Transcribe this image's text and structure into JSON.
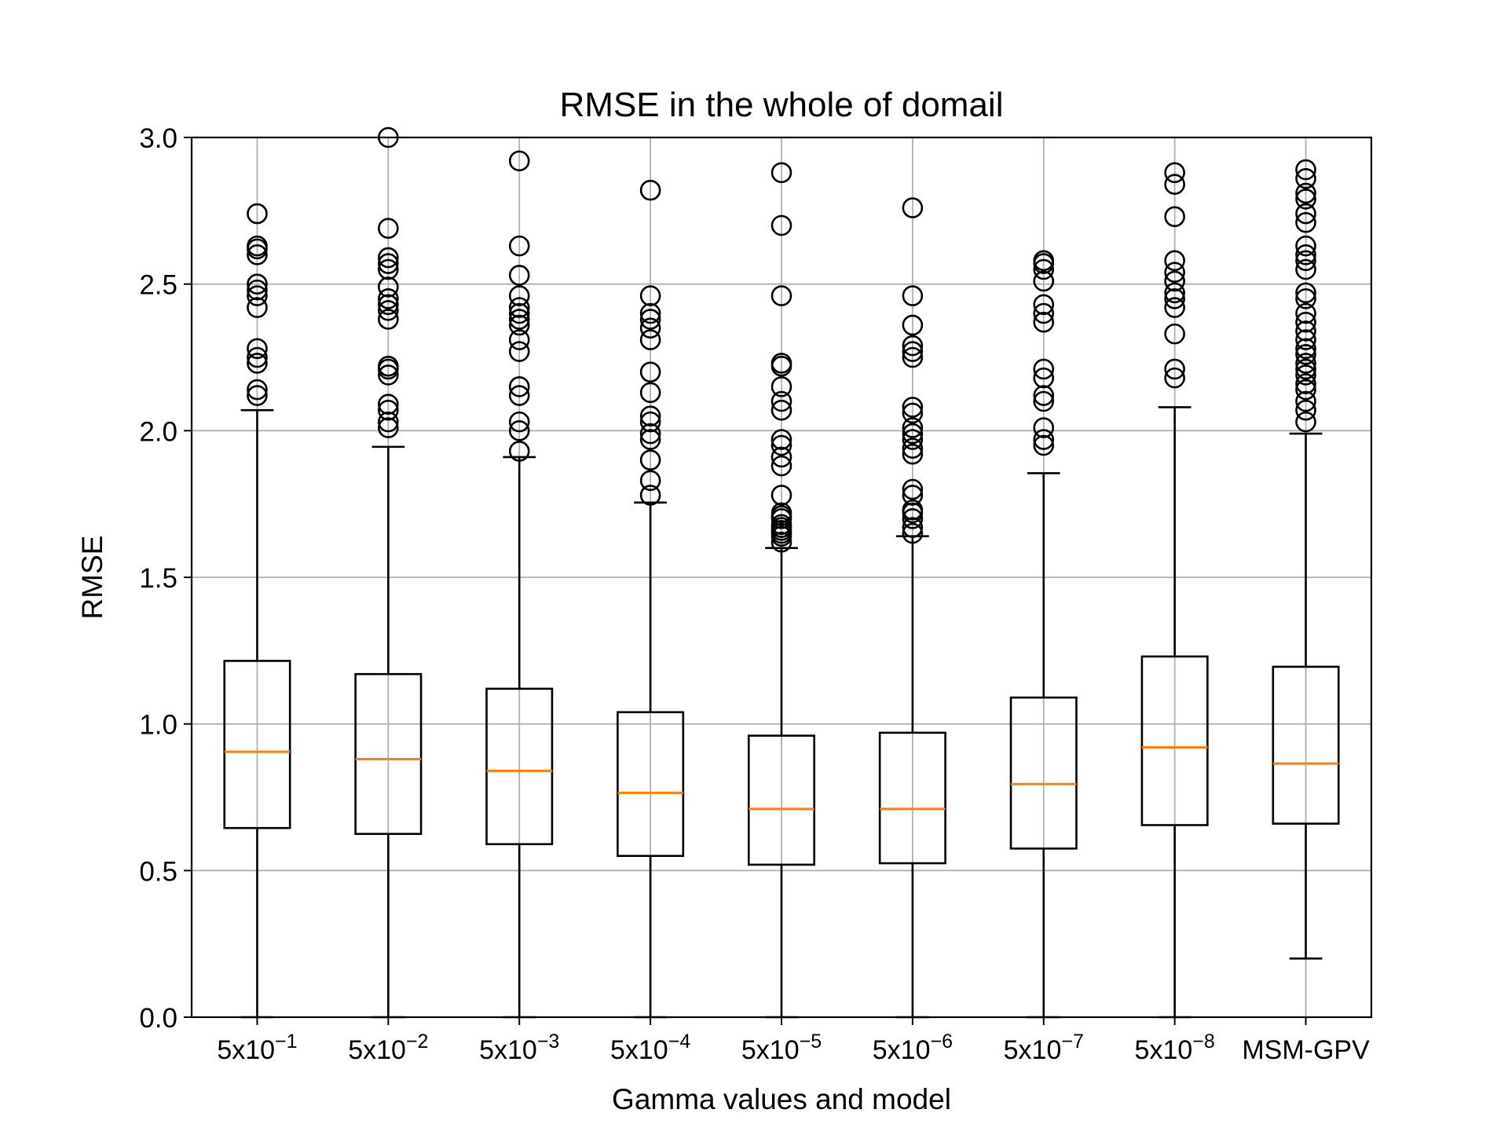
{
  "chart_data": {
    "type": "box",
    "title": "RMSE in the whole of domail",
    "xlabel": "Gamma values and model",
    "ylabel": "RMSE",
    "ylim": [
      0.0,
      3.0
    ],
    "yticks": [
      0.0,
      0.5,
      1.0,
      1.5,
      2.0,
      2.5,
      3.0
    ],
    "ytick_labels": [
      "0.0",
      "0.5",
      "1.0",
      "1.5",
      "2.0",
      "2.5",
      "3.0"
    ],
    "grid": true,
    "colors": {
      "box": "#000000",
      "median": "#ff7f0e",
      "grid": "#b0b0b0"
    },
    "categories": [
      {
        "base": "5x10",
        "exp": "−1"
      },
      {
        "base": "5x10",
        "exp": "−2"
      },
      {
        "base": "5x10",
        "exp": "−3"
      },
      {
        "base": "5x10",
        "exp": "−4"
      },
      {
        "base": "5x10",
        "exp": "−5"
      },
      {
        "base": "5x10",
        "exp": "−6"
      },
      {
        "base": "5x10",
        "exp": "−7"
      },
      {
        "base": "5x10",
        "exp": "−8"
      },
      {
        "base": "MSM-GPV",
        "exp": ""
      }
    ],
    "boxes": [
      {
        "whislo": 0.0,
        "q1": 0.645,
        "med": 0.905,
        "q3": 1.215,
        "whishi": 2.07,
        "fliers": [
          2.12,
          2.14,
          2.23,
          2.25,
          2.28,
          2.42,
          2.46,
          2.48,
          2.5,
          2.6,
          2.62,
          2.63,
          2.74
        ]
      },
      {
        "whislo": 0.0,
        "q1": 0.625,
        "med": 0.88,
        "q3": 1.17,
        "whishi": 1.945,
        "fliers": [
          2.01,
          2.03,
          2.07,
          2.09,
          2.19,
          2.21,
          2.22,
          2.38,
          2.41,
          2.43,
          2.45,
          2.49,
          2.55,
          2.57,
          2.59,
          2.69,
          3.0
        ]
      },
      {
        "whislo": 0.0,
        "q1": 0.59,
        "med": 0.84,
        "q3": 1.12,
        "whishi": 1.91,
        "fliers": [
          1.93,
          2.0,
          2.03,
          2.12,
          2.15,
          2.27,
          2.31,
          2.36,
          2.38,
          2.4,
          2.42,
          2.46,
          2.53,
          2.63,
          2.92
        ]
      },
      {
        "whislo": 0.0,
        "q1": 0.55,
        "med": 0.765,
        "q3": 1.04,
        "whishi": 1.755,
        "fliers": [
          1.78,
          1.83,
          1.9,
          1.97,
          1.99,
          2.03,
          2.05,
          2.13,
          2.2,
          2.31,
          2.35,
          2.38,
          2.4,
          2.46,
          2.82
        ]
      },
      {
        "whislo": 0.0,
        "q1": 0.52,
        "med": 0.71,
        "q3": 0.96,
        "whishi": 1.6,
        "fliers": [
          1.62,
          1.64,
          1.65,
          1.66,
          1.67,
          1.68,
          1.7,
          1.71,
          1.72,
          1.78,
          1.88,
          1.91,
          1.95,
          1.97,
          2.07,
          2.1,
          2.15,
          2.22,
          2.23,
          2.46,
          2.7,
          2.88
        ]
      },
      {
        "whislo": 0.0,
        "q1": 0.525,
        "med": 0.71,
        "q3": 0.97,
        "whishi": 1.64,
        "fliers": [
          1.65,
          1.67,
          1.7,
          1.72,
          1.73,
          1.78,
          1.8,
          1.92,
          1.94,
          1.97,
          1.99,
          2.01,
          2.06,
          2.08,
          2.25,
          2.27,
          2.29,
          2.36,
          2.46,
          2.76
        ]
      },
      {
        "whislo": 0.0,
        "q1": 0.575,
        "med": 0.795,
        "q3": 1.09,
        "whishi": 1.855,
        "fliers": [
          1.95,
          1.97,
          2.01,
          2.1,
          2.12,
          2.18,
          2.21,
          2.37,
          2.4,
          2.43,
          2.51,
          2.55,
          2.57,
          2.58
        ]
      },
      {
        "whislo": 0.0,
        "q1": 0.655,
        "med": 0.92,
        "q3": 1.23,
        "whishi": 2.08,
        "fliers": [
          2.18,
          2.21,
          2.33,
          2.42,
          2.45,
          2.47,
          2.51,
          2.54,
          2.58,
          2.73,
          2.84,
          2.88
        ]
      },
      {
        "whislo": 0.2,
        "q1": 0.66,
        "med": 0.865,
        "q3": 1.195,
        "whishi": 1.99,
        "fliers": [
          2.03,
          2.07,
          2.1,
          2.14,
          2.16,
          2.19,
          2.21,
          2.23,
          2.26,
          2.28,
          2.31,
          2.34,
          2.37,
          2.4,
          2.45,
          2.47,
          2.55,
          2.58,
          2.6,
          2.63,
          2.71,
          2.74,
          2.79,
          2.81,
          2.86,
          2.89
        ]
      }
    ]
  }
}
